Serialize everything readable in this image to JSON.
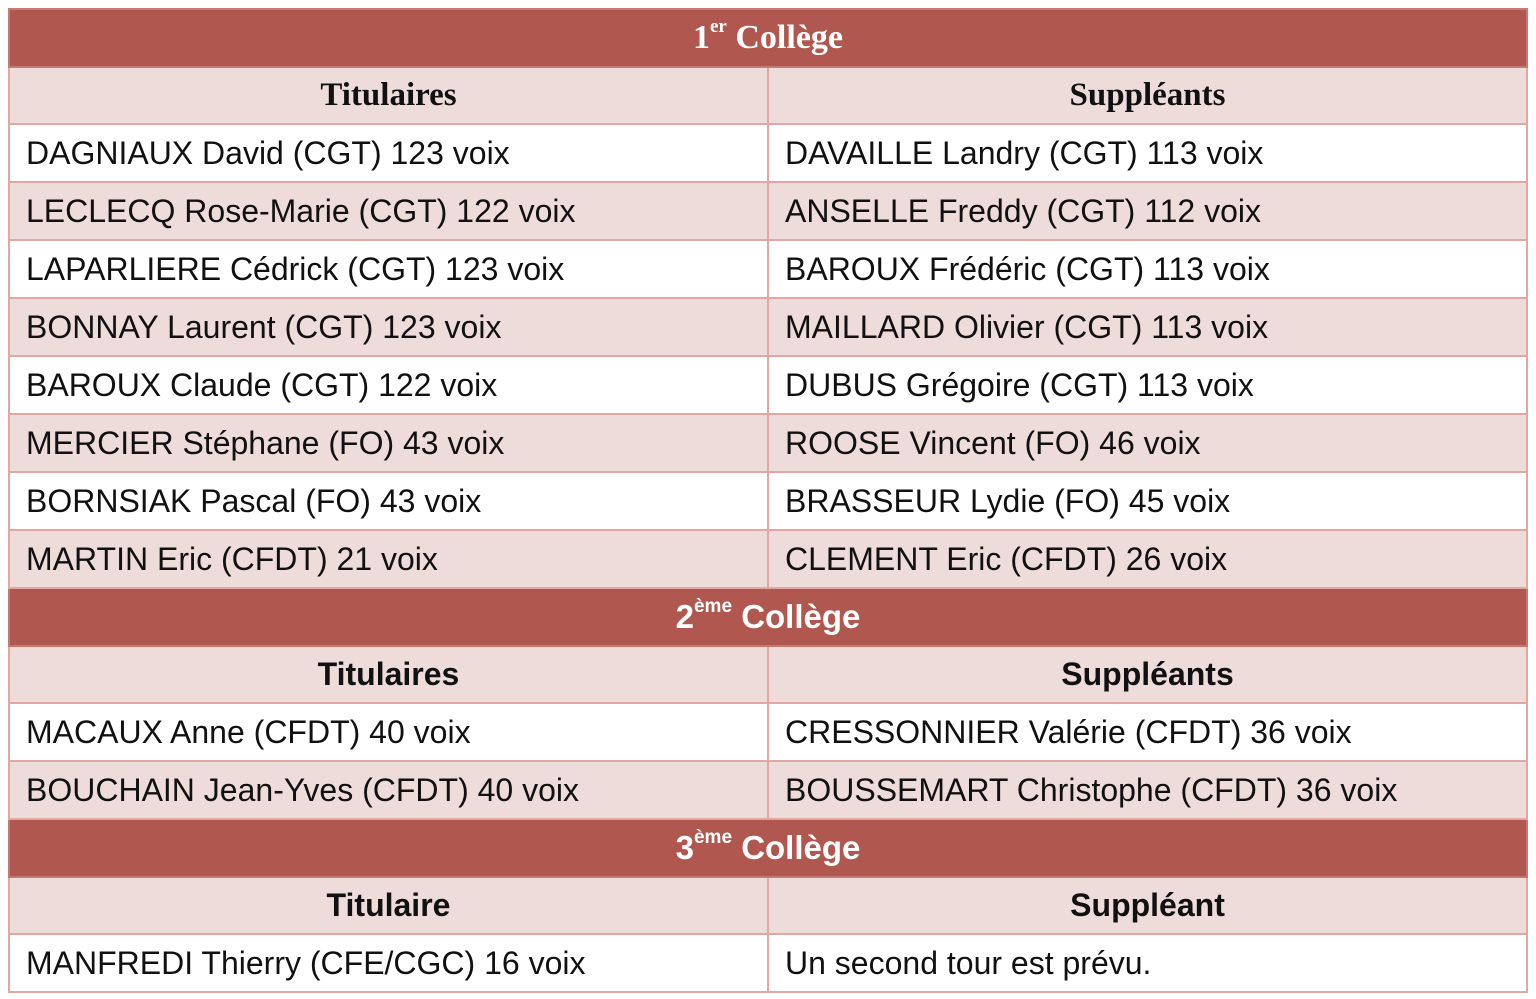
{
  "colleges": [
    {
      "num": "1",
      "sup": "er",
      "word": "Collège",
      "col_left": "Titulaires",
      "col_right": "Suppléants",
      "rows": [
        [
          "DAGNIAUX David (CGT) 123 voix",
          "DAVAILLE Landry (CGT) 113 voix"
        ],
        [
          "LECLECQ Rose-Marie (CGT) 122 voix",
          "ANSELLE Freddy (CGT) 112 voix"
        ],
        [
          "LAPARLIERE Cédrick (CGT) 123 voix",
          "BAROUX Frédéric (CGT) 113 voix"
        ],
        [
          "BONNAY Laurent (CGT) 123 voix",
          "MAILLARD Olivier (CGT) 113 voix"
        ],
        [
          "BAROUX Claude (CGT) 122 voix",
          "DUBUS Grégoire (CGT) 113 voix"
        ],
        [
          "MERCIER Stéphane (FO) 43 voix",
          "ROOSE Vincent (FO) 46 voix"
        ],
        [
          "BORNSIAK Pascal (FO) 43 voix",
          "BRASSEUR Lydie (FO) 45 voix"
        ],
        [
          "MARTIN Eric (CFDT) 21 voix",
          "CLEMENT Eric (CFDT) 26 voix"
        ]
      ]
    },
    {
      "num": "2",
      "sup": "ème",
      "word": "Collège",
      "col_left": "Titulaires",
      "col_right": "Suppléants",
      "rows": [
        [
          "MACAUX Anne (CFDT) 40 voix",
          "CRESSONNIER Valérie (CFDT) 36 voix"
        ],
        [
          "BOUCHAIN Jean-Yves (CFDT) 40 voix",
          "BOUSSEMART Christophe (CFDT) 36 voix"
        ]
      ]
    },
    {
      "num": "3",
      "sup": "ème",
      "word": "Collège",
      "col_left": "Titulaire",
      "col_right": "Suppléant",
      "rows": [
        [
          "MANFREDI Thierry (CFE/CGC) 16 voix",
          "Un second tour est prévu."
        ]
      ]
    }
  ],
  "colors": {
    "header_bg": "#b0584f",
    "subheader_bg": "#eedcdb",
    "border": "#e2a6a3"
  }
}
